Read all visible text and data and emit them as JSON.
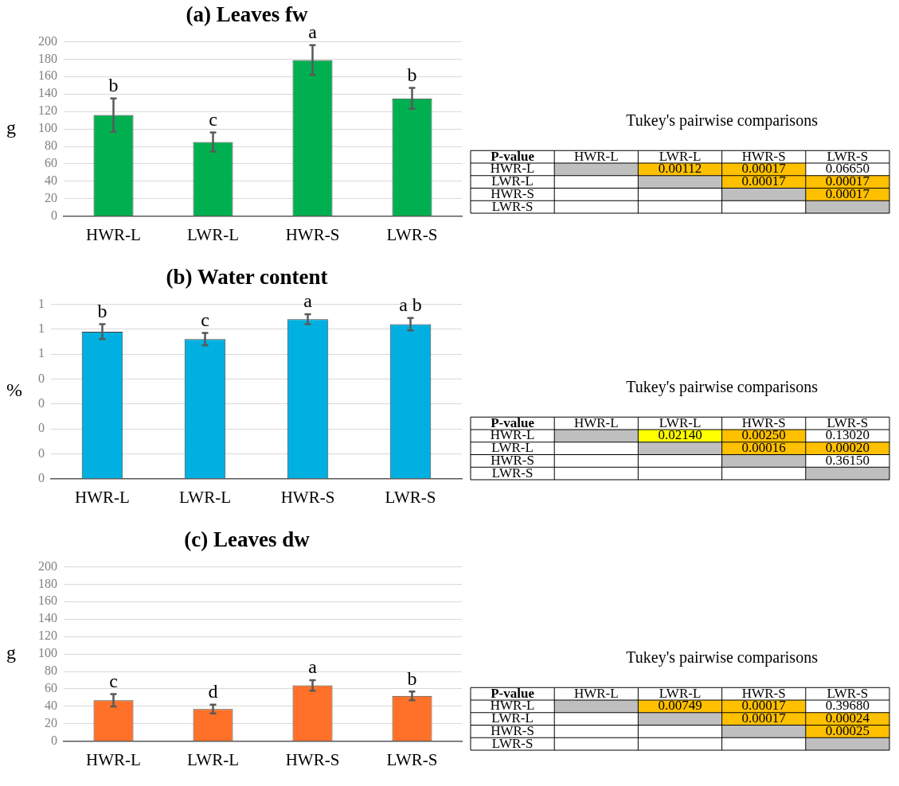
{
  "chart_data": [
    {
      "type": "bar",
      "title": "(a) Leaves fw",
      "ylabel": "g",
      "categories": [
        "HWR-L",
        "LWR-L",
        "HWR-S",
        "LWR-S"
      ],
      "values": [
        116,
        85,
        179,
        135
      ],
      "errors": [
        19,
        11,
        17,
        12
      ],
      "color": "#00b050",
      "ylim": [
        0,
        200
      ],
      "yticks": [
        0,
        20,
        40,
        60,
        80,
        100,
        120,
        140,
        160,
        180,
        200
      ],
      "grid": "y",
      "annotations": [
        {
          "text": "b",
          "x": "HWR-L",
          "y": 135
        },
        {
          "text": "c",
          "x": "LWR-L",
          "y": 96
        },
        {
          "text": "a",
          "x": "HWR-S",
          "y": 196
        },
        {
          "text": "b",
          "x": "LWR-S",
          "y": 147
        }
      ]
    },
    {
      "type": "heatmap",
      "title": "Tukey's pairwise comparisons",
      "ylabel": "P-value",
      "categories": [
        "HWR-L",
        "LWR-L",
        "HWR-S",
        "LWR-S"
      ],
      "y_categories": [
        "HWR-L",
        "LWR-L",
        "HWR-S",
        "LWR-S"
      ],
      "cells": [
        [
          null,
          0.00112,
          0.00017,
          0.0665
        ],
        [
          null,
          null,
          0.00017,
          0.00017
        ],
        [
          null,
          null,
          null,
          0.00017
        ],
        [
          null,
          null,
          null,
          null
        ]
      ],
      "cell_labels": [
        [
          null,
          "0.00112",
          "0.00017",
          "0.06650"
        ],
        [
          null,
          null,
          "0.00017",
          "0.00017"
        ],
        [
          null,
          null,
          null,
          "0.00017"
        ],
        [
          null,
          null,
          null,
          null
        ]
      ],
      "colors": [
        [
          "#bfbfbf",
          "#ffc000",
          "#ffc000",
          "#ffffff"
        ],
        [
          "#ffffff",
          "#bfbfbf",
          "#ffc000",
          "#ffc000"
        ],
        [
          "#ffffff",
          "#ffffff",
          "#bfbfbf",
          "#ffc000"
        ],
        [
          "#ffffff",
          "#ffffff",
          "#ffffff",
          "#bfbfbf"
        ]
      ]
    },
    {
      "type": "bar",
      "title": "(b) Water content",
      "ylabel": "%",
      "categories": [
        "HWR-L",
        "LWR-L",
        "HWR-S",
        "LWR-S"
      ],
      "values": [
        0.59,
        0.56,
        0.64,
        0.62
      ],
      "errors": [
        0.03,
        0.025,
        0.02,
        0.025
      ],
      "color": "#00b0e0",
      "ylim": [
        0,
        0.7
      ],
      "yticks": [
        0,
        {
          "value": 0.1,
          "label": "0"
        },
        {
          "value": 0.2,
          "label": "0"
        },
        {
          "value": 0.3,
          "label": "0"
        },
        {
          "value": 0.4,
          "label": "0"
        },
        {
          "value": 0.5,
          "label": "1"
        },
        {
          "value": 0.6,
          "label": "1"
        },
        {
          "value": 0.7,
          "label": "1"
        }
      ],
      "grid": "y",
      "annotations": [
        {
          "text": "b",
          "x": "HWR-L",
          "y": 0.62
        },
        {
          "text": "c",
          "x": "LWR-L",
          "y": 0.585
        },
        {
          "text": "a",
          "x": "HWR-S",
          "y": 0.66
        },
        {
          "text": "a b",
          "x": "LWR-S",
          "y": 0.645
        }
      ]
    },
    {
      "type": "heatmap",
      "title": "Tukey's pairwise comparisons",
      "ylabel": "P-value",
      "categories": [
        "HWR-L",
        "LWR-L",
        "HWR-S",
        "LWR-S"
      ],
      "y_categories": [
        "HWR-L",
        "LWR-L",
        "HWR-S",
        "LWR-S"
      ],
      "cells": [
        [
          null,
          0.0214,
          0.0025,
          0.1302
        ],
        [
          null,
          null,
          0.00016,
          0.0002
        ],
        [
          null,
          null,
          null,
          0.3615
        ],
        [
          null,
          null,
          null,
          null
        ]
      ],
      "cell_labels": [
        [
          null,
          "0.02140",
          "0.00250",
          "0.13020"
        ],
        [
          null,
          null,
          "0.00016",
          "0.00020"
        ],
        [
          null,
          null,
          null,
          "0.36150"
        ],
        [
          null,
          null,
          null,
          null
        ]
      ],
      "colors": [
        [
          "#bfbfbf",
          "#ffff00",
          "#ffc000",
          "#ffffff"
        ],
        [
          "#ffffff",
          "#bfbfbf",
          "#ffc000",
          "#ffc000"
        ],
        [
          "#ffffff",
          "#ffffff",
          "#bfbfbf",
          "#ffffff"
        ],
        [
          "#ffffff",
          "#ffffff",
          "#ffffff",
          "#bfbfbf"
        ]
      ]
    },
    {
      "type": "bar",
      "title": "(c) Leaves dw",
      "ylabel": "g",
      "categories": [
        "HWR-L",
        "LWR-L",
        "HWR-S",
        "LWR-S"
      ],
      "values": [
        47,
        37,
        64,
        52
      ],
      "errors": [
        7,
        5,
        6,
        5
      ],
      "color": "#ff7128",
      "ylim": [
        0,
        200
      ],
      "yticks": [
        0,
        20,
        40,
        60,
        80,
        100,
        120,
        140,
        160,
        180,
        200
      ],
      "grid": "y",
      "annotations": [
        {
          "text": "c",
          "x": "HWR-L",
          "y": 54
        },
        {
          "text": "d",
          "x": "LWR-L",
          "y": 42
        },
        {
          "text": "a",
          "x": "HWR-S",
          "y": 70
        },
        {
          "text": "b",
          "x": "LWR-S",
          "y": 57
        }
      ]
    },
    {
      "type": "heatmap",
      "title": "Tukey's pairwise comparisons",
      "ylabel": "P-value",
      "categories": [
        "HWR-L",
        "LWR-L",
        "HWR-S",
        "LWR-S"
      ],
      "y_categories": [
        "HWR-L",
        "LWR-L",
        "HWR-S",
        "LWR-S"
      ],
      "cells": [
        [
          null,
          0.00749,
          0.00017,
          0.3968
        ],
        [
          null,
          null,
          0.00017,
          0.00024
        ],
        [
          null,
          null,
          null,
          0.00025
        ],
        [
          null,
          null,
          null,
          null
        ]
      ],
      "cell_labels": [
        [
          null,
          "0.00749",
          "0.00017",
          "0.39680"
        ],
        [
          null,
          null,
          "0.00017",
          "0.00024"
        ],
        [
          null,
          null,
          null,
          "0.00025"
        ],
        [
          null,
          null,
          null,
          null
        ]
      ],
      "colors": [
        [
          "#bfbfbf",
          "#ffc000",
          "#ffc000",
          "#ffffff"
        ],
        [
          "#ffffff",
          "#bfbfbf",
          "#ffc000",
          "#ffc000"
        ],
        [
          "#ffffff",
          "#ffffff",
          "#bfbfbf",
          "#ffc000"
        ],
        [
          "#ffffff",
          "#ffffff",
          "#ffffff",
          "#bfbfbf"
        ]
      ]
    }
  ]
}
